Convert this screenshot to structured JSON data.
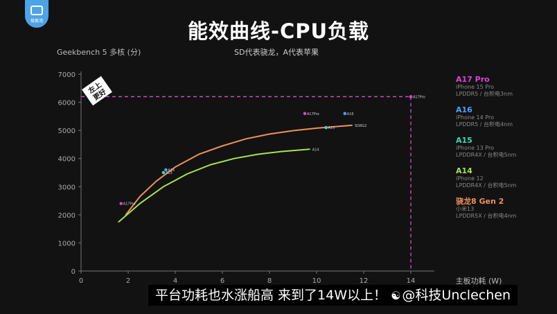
{
  "logo": {
    "text": "极客湾"
  },
  "title": "能效曲线-CPU负载",
  "subtitle": "SD代表骁龙，A代表苹果",
  "caption": {
    "text": "平台功耗也水涨船高 来到了14W以上！",
    "watermark_icon": "weibo-icon",
    "watermark": "@科技Unclechen"
  },
  "colors": {
    "background": "#121212",
    "a17": "#e040d8",
    "a16": "#4fa0ff",
    "a15": "#3fd6c0",
    "a14": "#a6e54a",
    "sd8g2": "#f0915a",
    "guide": "#d94fd0"
  },
  "legend": [
    {
      "name": "A17 Pro",
      "lines": [
        "iPhone 15 Pro",
        "LPDDR5 / 台积电3nm"
      ],
      "color": "#e040d8"
    },
    {
      "name": "A16",
      "lines": [
        "iPhone 14 Pro",
        "LPDDR5 / 台积电4nm"
      ],
      "color": "#4fa0ff"
    },
    {
      "name": "A15",
      "lines": [
        "iPhone 13 Pro",
        "LPDDR4X / 台积电5nm"
      ],
      "color": "#3fd6c0"
    },
    {
      "name": "A14",
      "lines": [
        "iPhone 12",
        "LPDDR4X / 台积电5nm"
      ],
      "color": "#a6e54a"
    },
    {
      "name": "骁龙8 Gen 2",
      "lines": [
        "小米13",
        "LPDDR5X / 台积电4nm"
      ],
      "color": "#f0915a"
    }
  ],
  "chart_data": {
    "type": "line",
    "title": "能效曲线-CPU负载",
    "ylabel": "Geekbench 5 多核 (分)",
    "xlabel": "主板功耗 (W)",
    "xlim": [
      0,
      15
    ],
    "ylim": [
      0,
      7000
    ],
    "xticks": [
      0,
      2,
      4,
      6,
      8,
      10,
      12,
      14
    ],
    "yticks": [
      0,
      1000,
      2000,
      3000,
      4000,
      5000,
      6000,
      7000
    ],
    "series": [
      {
        "name": "骁龙8 Gen 2",
        "color": "#f0915a",
        "end_label": "SD8G2",
        "x": [
          1.9,
          2.5,
          3.2,
          4.0,
          5.0,
          6.0,
          7.0,
          8.0,
          9.0,
          10.0,
          11.0,
          11.5
        ],
        "y": [
          2000,
          2650,
          3200,
          3700,
          4150,
          4450,
          4700,
          4870,
          4990,
          5080,
          5150,
          5180
        ]
      },
      {
        "name": "A14",
        "color": "#a6e54a",
        "end_label": "A14",
        "x": [
          1.6,
          2.5,
          3.5,
          4.5,
          5.5,
          6.5,
          7.5,
          8.5,
          9.7
        ],
        "y": [
          1750,
          2400,
          3000,
          3450,
          3780,
          4000,
          4150,
          4250,
          4330
        ]
      }
    ],
    "points": [
      {
        "label": "A17Pro",
        "x": 1.7,
        "y": 2400,
        "color": "#e040d8"
      },
      {
        "label": "A16",
        "x": 3.6,
        "y": 3600,
        "color": "#4fa0ff"
      },
      {
        "label": "A15",
        "x": 3.5,
        "y": 3500,
        "color": "#3fd6c0"
      },
      {
        "label": "A17Pro",
        "x": 9.5,
        "y": 5600,
        "color": "#e040d8"
      },
      {
        "label": "A16",
        "x": 11.2,
        "y": 5600,
        "color": "#4fa0ff"
      },
      {
        "label": "A15",
        "x": 10.4,
        "y": 5100,
        "color": "#3fd6c0"
      },
      {
        "label": "A17Pro",
        "x": 14.0,
        "y": 6200,
        "color": "#e040d8"
      }
    ],
    "guide": {
      "x": 14.0,
      "y": 6200,
      "color": "#d94fd0"
    },
    "corner_tag": "左上更好",
    "grid": false
  }
}
